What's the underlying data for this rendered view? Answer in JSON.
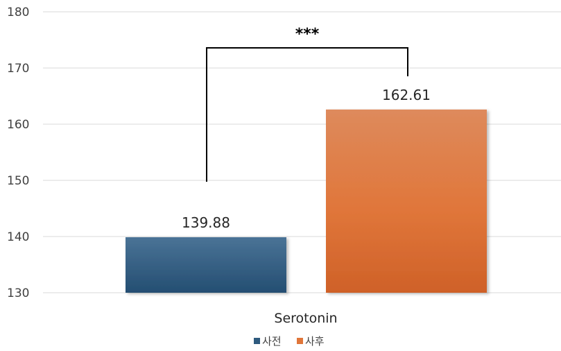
{
  "chart_data": {
    "type": "bar",
    "categories": [
      "Serotonin"
    ],
    "series": [
      {
        "name": "사전",
        "values": [
          139.88
        ],
        "color": "#2e5a7e"
      },
      {
        "name": "사후",
        "values": [
          162.61
        ],
        "color": "#e0763a"
      }
    ],
    "data_labels": [
      "139.88",
      "162.61"
    ],
    "yticks": [
      130,
      140,
      150,
      160,
      170,
      180
    ],
    "ylim": [
      130,
      180
    ],
    "significance": "***",
    "grid": true,
    "legend_position": "bottom"
  }
}
